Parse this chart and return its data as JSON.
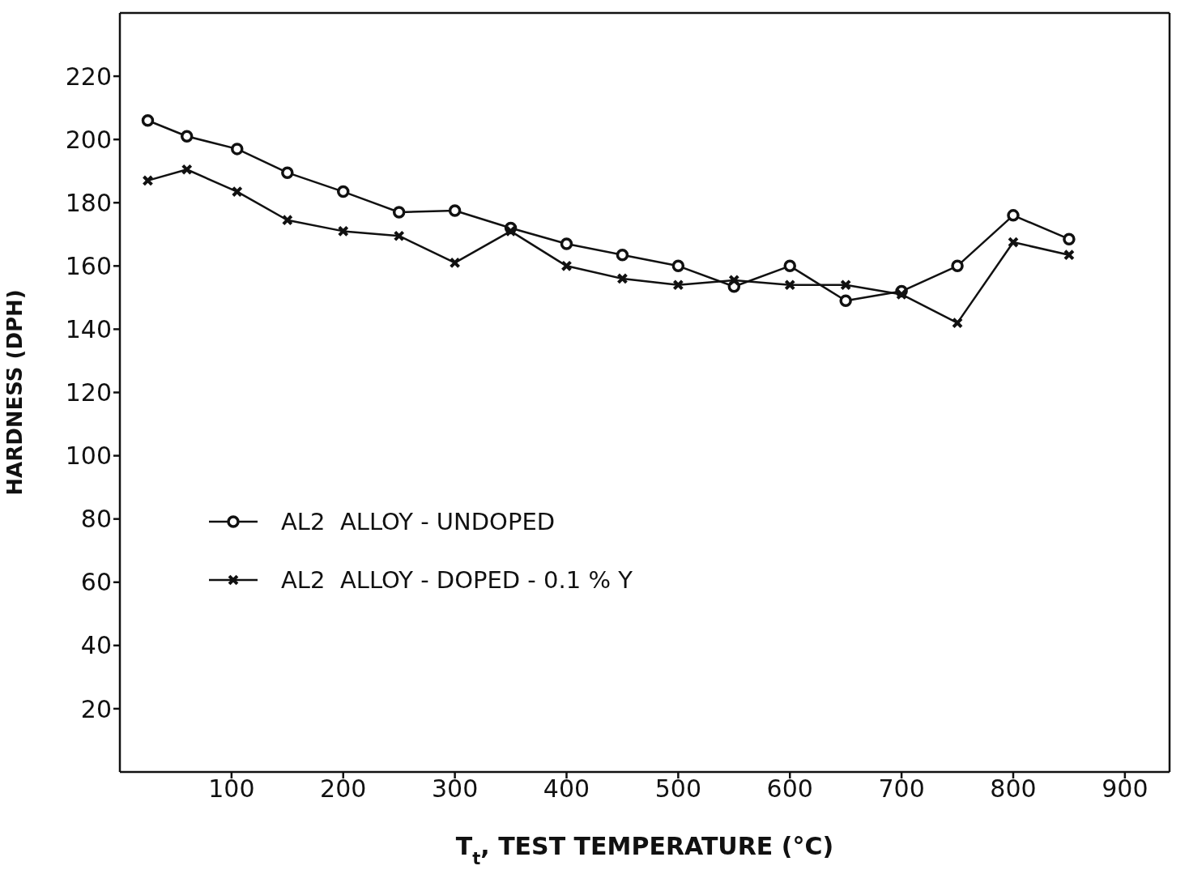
{
  "chart_data": {
    "type": "line",
    "xlabel": "T$_{t}$, TEST TEMPERATURE (°C)",
    "ylabel": "HARDNESS (DPH)",
    "x": [
      25,
      60,
      105,
      150,
      200,
      250,
      300,
      350,
      400,
      450,
      500,
      550,
      600,
      650,
      700,
      750,
      800,
      850
    ],
    "series": [
      {
        "name": "AL2  ALLOY - UNDOPED",
        "color": "#111111",
        "marker": "circle",
        "values": [
          206,
          201,
          197,
          189.5,
          183.5,
          177,
          177.5,
          172,
          167,
          163.5,
          160,
          153.5,
          160,
          149,
          152,
          160,
          176,
          168.5
        ]
      },
      {
        "name": "AL2  ALLOY - DOPED - 0.1 % Y",
        "color": "#111111",
        "marker": "cross",
        "values": [
          187,
          190.5,
          183.5,
          174.5,
          171,
          169.5,
          161,
          171,
          160,
          156,
          154,
          155.5,
          154,
          154,
          151,
          142,
          167.5,
          163.5
        ]
      }
    ],
    "xlim": [
      0,
      940
    ],
    "xticks": [
      100,
      200,
      300,
      400,
      500,
      600,
      700,
      800,
      900
    ],
    "ylim": [
      0,
      240
    ],
    "yticks": [
      20,
      40,
      60,
      80,
      100,
      120,
      140,
      160,
      180,
      200,
      220
    ],
    "grid": false,
    "legend": "left",
    "line_style": "solid"
  }
}
